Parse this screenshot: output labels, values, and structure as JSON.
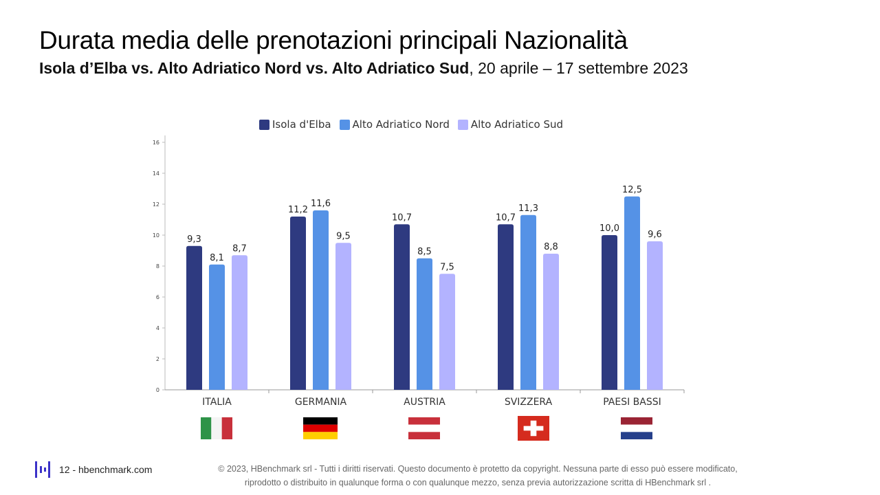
{
  "header": {
    "title": "Durata media delle prenotazioni principali Nazionalità",
    "subtitle_bold": "Isola d’Elba vs. Alto Adriatico Nord vs. Alto Adriatico Sud",
    "subtitle_rest": ", 20 aprile – 17 settembre 2023"
  },
  "chart_data": {
    "type": "bar",
    "categories": [
      "ITALIA",
      "GERMANIA",
      "AUSTRIA",
      "SVIZZERA",
      "PAESI BASSI"
    ],
    "series": [
      {
        "name": "Isola d'Elba",
        "color": "#2e3a80",
        "values": [
          9.3,
          11.2,
          10.7,
          10.7,
          10.0
        ],
        "labels": [
          "9,3",
          "11,2",
          "10,7",
          "10,7",
          "10,0"
        ]
      },
      {
        "name": "Alto Adriatico Nord",
        "color": "#5592e6",
        "values": [
          8.1,
          11.6,
          8.5,
          11.3,
          12.5
        ],
        "labels": [
          "8,1",
          "11,6",
          "8,5",
          "11,3",
          "12,5"
        ]
      },
      {
        "name": "Alto Adriatico Sud",
        "color": "#b3b3ff",
        "values": [
          8.7,
          9.5,
          7.5,
          8.8,
          9.6
        ],
        "labels": [
          "8,7",
          "9,5",
          "7,5",
          "8,8",
          "9,6"
        ]
      }
    ],
    "yticks": [
      "0",
      "2",
      "4",
      "6",
      "8",
      "10",
      "12",
      "14",
      "16"
    ],
    "ylim": [
      0,
      16
    ],
    "grid": false,
    "legend_position": "top-center"
  },
  "flags": [
    {
      "country": "italy",
      "colors": [
        "#2e9348",
        "#f4f4f4",
        "#c8303b"
      ]
    },
    {
      "country": "germany",
      "colors": [
        "#000000",
        "#dd0000",
        "#ffce00"
      ]
    },
    {
      "country": "austria",
      "colors": [
        "#c8303b",
        "#ffffff",
        "#c8303b"
      ]
    },
    {
      "country": "switzerland",
      "colors": [
        "#d52b1e",
        "#ffffff"
      ]
    },
    {
      "country": "netherlands",
      "colors": [
        "#9a2434",
        "#ffffff",
        "#26408b"
      ]
    }
  ],
  "footer": {
    "page_label": "12 - hbenchmark.com",
    "copyright_line1": "© 2023, HBenchmark srl - Tutti i diritti riservati. Questo documento è protetto da copyright. Nessuna parte di esso può essere modificato,",
    "copyright_line2": "riprodotto o distribuito in qualunque forma o con qualunque mezzo, senza previa autorizzazione scritta di HBenchmark srl ."
  }
}
